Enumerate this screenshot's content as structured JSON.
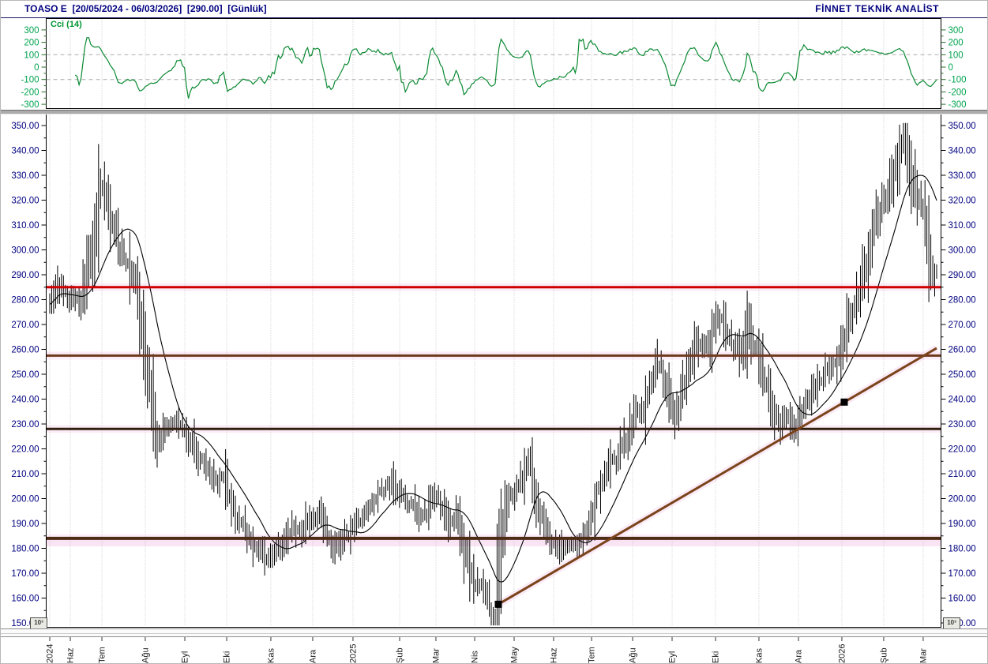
{
  "header": {
    "title": "TOASO E  [20/05/2024 - 06/03/2026]  [290.00]  [Günlük]",
    "brand": "FİNNET TEKNİK ANALİST"
  },
  "colors": {
    "title_text": "#000080",
    "axis_text_price": "#000080",
    "axis_text_cci": "#00a34f",
    "axis_text_months": "#1a1a1a",
    "cci_line": "#0b8a33",
    "bars": "#000000",
    "moving_average": "#000000",
    "grid_dotted": "#c6c6c6",
    "grid_dashed": "#ababab",
    "glow_pink": "#f8dff1"
  },
  "scale_indicator": "10³",
  "chart_data": [
    {
      "panel": "top-indicator",
      "type": "line",
      "title": "Cci (14)",
      "ylim": [
        -350,
        350
      ],
      "ytick_labels": [
        "300",
        "200",
        "100",
        "0",
        "-100",
        "-200",
        "-300"
      ],
      "ytick_values": [
        300,
        200,
        100,
        0,
        -100,
        -200,
        -300
      ],
      "dashed_gridlines_at": [
        100,
        -100
      ],
      "line_color": "#0b8a33",
      "derived_from": "CCI(14) of the main price series shown below",
      "legend_position": "top-left"
    },
    {
      "panel": "main-price",
      "type": "bar",
      "bar_style": "high-low-bar",
      "symbol": "TOASO E",
      "period_label": "Günlük",
      "date_range": [
        "20/05/2024",
        "06/03/2026"
      ],
      "last_price": "290.00",
      "ylim": [
        150,
        350
      ],
      "ytick_labels": [
        "350.00",
        "340.00",
        "330.00",
        "320.00",
        "310.00",
        "300.00",
        "290.00",
        "280.00",
        "270.00",
        "260.00",
        "250.00",
        "240.00",
        "230.00",
        "220.00",
        "210.00",
        "200.00",
        "190.00",
        "180.00",
        "170.00",
        "160.00",
        "150.00"
      ],
      "x_tick_labels": [
        {
          "label": "2024",
          "t": 0.0
        },
        {
          "label": "Haz",
          "t": 0.0232
        },
        {
          "label": "Tem",
          "t": 0.0588
        },
        {
          "label": "Ağu",
          "t": 0.1077
        },
        {
          "label": "Eyl",
          "t": 0.1523
        },
        {
          "label": "Eki",
          "t": 0.1995
        },
        {
          "label": "Kas",
          "t": 0.2493
        },
        {
          "label": "Ara",
          "t": 0.2965
        },
        {
          "label": "2025",
          "t": 0.3419
        },
        {
          "label": "Şub",
          "t": 0.3945
        },
        {
          "label": "Mar",
          "t": 0.4354
        },
        {
          "label": "Nis",
          "t": 0.4791
        },
        {
          "label": "May",
          "t": 0.5236
        },
        {
          "label": "Haz",
          "t": 0.5681
        },
        {
          "label": "Tem",
          "t": 0.6109
        },
        {
          "label": "Ağu",
          "t": 0.6572
        },
        {
          "label": "Eyl",
          "t": 0.7017
        },
        {
          "label": "Eki",
          "t": 0.7507
        },
        {
          "label": "Kas",
          "t": 0.7996
        },
        {
          "label": "Ara",
          "t": 0.8442
        },
        {
          "label": "2026",
          "t": 0.8931
        },
        {
          "label": "Şub",
          "t": 0.9403
        },
        {
          "label": "Mar",
          "t": 0.9848
        }
      ],
      "price_keypoints": [
        [
          0.0,
          278
        ],
        [
          0.012,
          285
        ],
        [
          0.023,
          280
        ],
        [
          0.034,
          278
        ],
        [
          0.043,
          295
        ],
        [
          0.05,
          306
        ],
        [
          0.056,
          325
        ],
        [
          0.063,
          321
        ],
        [
          0.07,
          312
        ],
        [
          0.078,
          301
        ],
        [
          0.089,
          292
        ],
        [
          0.098,
          284
        ],
        [
          0.105,
          262
        ],
        [
          0.114,
          240
        ],
        [
          0.12,
          223
        ],
        [
          0.127,
          226
        ],
        [
          0.136,
          231
        ],
        [
          0.148,
          230
        ],
        [
          0.158,
          224
        ],
        [
          0.169,
          215
        ],
        [
          0.178,
          210
        ],
        [
          0.187,
          207
        ],
        [
          0.196,
          210
        ],
        [
          0.205,
          198
        ],
        [
          0.214,
          190
        ],
        [
          0.223,
          183
        ],
        [
          0.231,
          180
        ],
        [
          0.242,
          176
        ],
        [
          0.253,
          176
        ],
        [
          0.264,
          183
        ],
        [
          0.274,
          189
        ],
        [
          0.285,
          188
        ],
        [
          0.296,
          191
        ],
        [
          0.305,
          194
        ],
        [
          0.313,
          186
        ],
        [
          0.324,
          180
        ],
        [
          0.333,
          183
        ],
        [
          0.344,
          191
        ],
        [
          0.354,
          196
        ],
        [
          0.365,
          200
        ],
        [
          0.376,
          204
        ],
        [
          0.385,
          207
        ],
        [
          0.394,
          205
        ],
        [
          0.402,
          199
        ],
        [
          0.411,
          194
        ],
        [
          0.422,
          196
        ],
        [
          0.431,
          201
        ],
        [
          0.44,
          197
        ],
        [
          0.449,
          192
        ],
        [
          0.458,
          194
        ],
        [
          0.467,
          180
        ],
        [
          0.475,
          168
        ],
        [
          0.484,
          163
        ],
        [
          0.493,
          158
        ],
        [
          0.502,
          153
        ],
        [
          0.509,
          185
        ],
        [
          0.516,
          200
        ],
        [
          0.525,
          205
        ],
        [
          0.534,
          212
        ],
        [
          0.54,
          215
        ],
        [
          0.547,
          200
        ],
        [
          0.556,
          190
        ],
        [
          0.565,
          184
        ],
        [
          0.575,
          183
        ],
        [
          0.586,
          181
        ],
        [
          0.595,
          180
        ],
        [
          0.604,
          186
        ],
        [
          0.614,
          200
        ],
        [
          0.625,
          208
        ],
        [
          0.636,
          214
        ],
        [
          0.647,
          222
        ],
        [
          0.657,
          230
        ],
        [
          0.668,
          238
        ],
        [
          0.679,
          248
        ],
        [
          0.686,
          254
        ],
        [
          0.695,
          243
        ],
        [
          0.704,
          233
        ],
        [
          0.711,
          240
        ],
        [
          0.72,
          253
        ],
        [
          0.728,
          266
        ],
        [
          0.737,
          262
        ],
        [
          0.746,
          268
        ],
        [
          0.753,
          274
        ],
        [
          0.76,
          272
        ],
        [
          0.769,
          261
        ],
        [
          0.778,
          258
        ],
        [
          0.787,
          272
        ],
        [
          0.796,
          262
        ],
        [
          0.805,
          250
        ],
        [
          0.814,
          240
        ],
        [
          0.823,
          232
        ],
        [
          0.832,
          234
        ],
        [
          0.841,
          232
        ],
        [
          0.849,
          236
        ],
        [
          0.858,
          241
        ],
        [
          0.867,
          246
        ],
        [
          0.876,
          250
        ],
        [
          0.885,
          256
        ],
        [
          0.894,
          263
        ],
        [
          0.903,
          274
        ],
        [
          0.912,
          284
        ],
        [
          0.921,
          295
        ],
        [
          0.93,
          310
        ],
        [
          0.938,
          322
        ],
        [
          0.947,
          328
        ],
        [
          0.956,
          338
        ],
        [
          0.963,
          347
        ],
        [
          0.97,
          333
        ],
        [
          0.978,
          322
        ],
        [
          0.985,
          318
        ],
        [
          0.992,
          300
        ],
        [
          1.0,
          290
        ]
      ],
      "bars": {
        "count": 455,
        "seed": 11,
        "color": "#000000"
      },
      "moving_average": {
        "window": 21,
        "color": "#000000"
      },
      "h_lines": [
        {
          "price": 285,
          "color": "#ce0000",
          "width": 3
        },
        {
          "price": 257.5,
          "color": "#6f3a1e",
          "width": 3
        },
        {
          "price": 228,
          "color": "#31200f",
          "width": 3
        },
        {
          "price": 184,
          "color": "#4e2b15",
          "width": 4
        }
      ],
      "trendline": {
        "from": {
          "t": 0.5058,
          "price": 157.5
        },
        "to": {
          "t": 1.0,
          "price": 260.5
        },
        "color": "#7a431a",
        "width": 3
      },
      "markers": [
        {
          "t": 0.5058,
          "price": 157.5,
          "shape": "square",
          "color": "#000000"
        },
        {
          "t": 0.8958,
          "price": 238.8,
          "shape": "square",
          "color": "#000000"
        }
      ]
    }
  ]
}
